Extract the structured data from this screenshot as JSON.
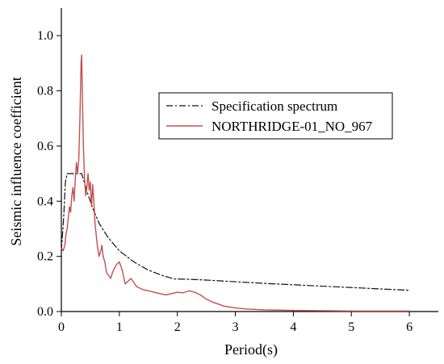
{
  "chart_data": {
    "type": "line",
    "title": "",
    "xlabel": "Period(s)",
    "ylabel": "Seismic influence coefficient",
    "xlim": [
      0,
      6.5
    ],
    "ylim": [
      0,
      1.1
    ],
    "xticks": [
      0,
      1,
      2,
      3,
      4,
      5,
      6
    ],
    "yticks": [
      0.0,
      0.2,
      0.4,
      0.6,
      0.8,
      1.0
    ],
    "xtick_labels": [
      "0",
      "1",
      "2",
      "3",
      "4",
      "5",
      "6"
    ],
    "ytick_labels": [
      "0.0",
      "0.2",
      "0.4",
      "0.6",
      "0.8",
      "1.0"
    ],
    "grid": false,
    "legend": {
      "position": "top-right"
    },
    "series": [
      {
        "name": "Specification spectrum",
        "style": "dash-dot",
        "color": "#111111",
        "x": [
          0.0,
          0.04,
          0.07,
          0.1,
          0.2,
          0.35,
          0.45,
          0.55,
          0.65,
          0.8,
          1.0,
          1.25,
          1.5,
          1.75,
          1.95,
          2.2,
          2.5,
          3.0,
          3.5,
          4.0,
          4.5,
          5.0,
          5.5,
          6.0
        ],
        "y": [
          0.22,
          0.34,
          0.47,
          0.5,
          0.5,
          0.5,
          0.43,
          0.37,
          0.32,
          0.27,
          0.22,
          0.18,
          0.15,
          0.13,
          0.118,
          0.117,
          0.114,
          0.108,
          0.102,
          0.097,
          0.092,
          0.087,
          0.082,
          0.077
        ]
      },
      {
        "name": "NORTHRIDGE-01_NO_967",
        "style": "solid",
        "color": "#c0504d",
        "x": [
          0.0,
          0.03,
          0.06,
          0.08,
          0.1,
          0.12,
          0.14,
          0.16,
          0.18,
          0.2,
          0.22,
          0.24,
          0.26,
          0.28,
          0.3,
          0.32,
          0.34,
          0.35,
          0.36,
          0.38,
          0.4,
          0.42,
          0.44,
          0.46,
          0.48,
          0.5,
          0.52,
          0.54,
          0.56,
          0.58,
          0.6,
          0.62,
          0.65,
          0.68,
          0.7,
          0.72,
          0.75,
          0.78,
          0.82,
          0.85,
          0.88,
          0.9,
          0.95,
          1.0,
          1.05,
          1.1,
          1.15,
          1.2,
          1.3,
          1.4,
          1.5,
          1.6,
          1.7,
          1.8,
          1.9,
          2.0,
          2.1,
          2.2,
          2.3,
          2.4,
          2.5,
          2.6,
          2.8,
          3.0,
          3.2,
          3.5,
          4.0,
          4.5,
          5.0,
          5.5,
          6.0
        ],
        "y": [
          0.23,
          0.22,
          0.24,
          0.28,
          0.3,
          0.34,
          0.38,
          0.36,
          0.42,
          0.45,
          0.4,
          0.48,
          0.54,
          0.5,
          0.55,
          0.7,
          0.9,
          0.93,
          0.82,
          0.6,
          0.48,
          0.42,
          0.45,
          0.5,
          0.44,
          0.47,
          0.38,
          0.46,
          0.4,
          0.32,
          0.28,
          0.24,
          0.2,
          0.22,
          0.24,
          0.2,
          0.18,
          0.14,
          0.13,
          0.12,
          0.14,
          0.15,
          0.17,
          0.18,
          0.15,
          0.1,
          0.11,
          0.12,
          0.09,
          0.08,
          0.075,
          0.07,
          0.065,
          0.06,
          0.065,
          0.07,
          0.068,
          0.075,
          0.07,
          0.06,
          0.045,
          0.035,
          0.02,
          0.013,
          0.009,
          0.006,
          0.004,
          0.003,
          0.002,
          0.002,
          0.002
        ]
      }
    ]
  }
}
